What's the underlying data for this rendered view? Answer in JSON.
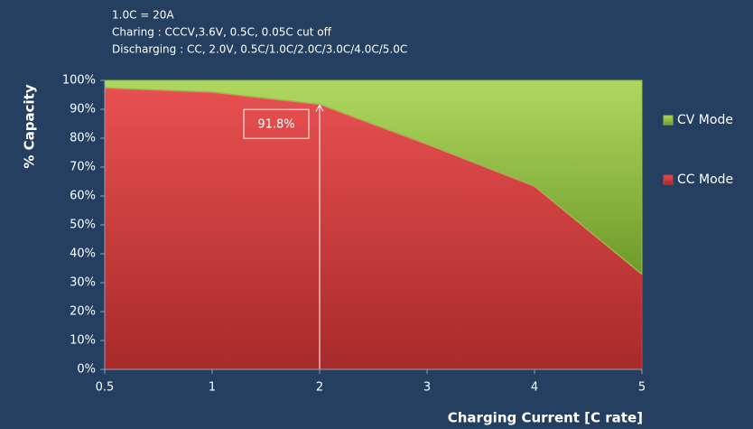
{
  "chart_data": {
    "type": "stacked_area",
    "notes": [
      "1.0C = 20A",
      "Charing : CCCV,3.6V, 0.5C, 0.05C cut off",
      "Discharging : CC, 2.0V, 0.5C/1.0C/2.0C/3.0C/4.0C/5.0C"
    ],
    "x_label": "Charging Current [C rate]",
    "y_label": "% Capacity",
    "categories": [
      0.5,
      1,
      2,
      3,
      4,
      5
    ],
    "series": [
      {
        "name": "CC Mode",
        "color": "#d23c3c",
        "values": [
          97.5,
          96,
          91.8,
          78,
          63.5,
          33
        ],
        "value_labels": [
          null,
          null,
          "91.8%",
          null,
          null,
          null
        ]
      },
      {
        "name": "CV Mode",
        "color": "#8dc03c",
        "values": [
          2.5,
          4,
          8.2,
          22,
          36.5,
          67
        ]
      }
    ],
    "ylim": [
      0,
      100
    ],
    "yticks": [
      {
        "value": 0,
        "label": "0%"
      },
      {
        "value": 10,
        "label": "10%"
      },
      {
        "value": 20,
        "label": "20%"
      },
      {
        "value": 30,
        "label": "30%"
      },
      {
        "value": 40,
        "label": "40%"
      },
      {
        "value": 50,
        "label": "50%"
      },
      {
        "value": 60,
        "label": "60%"
      },
      {
        "value": 70,
        "label": "70%"
      },
      {
        "value": 80,
        "label": "80%"
      },
      {
        "value": 90,
        "label": "90%"
      },
      {
        "value": 100,
        "label": "100%"
      }
    ],
    "legend": "right"
  }
}
